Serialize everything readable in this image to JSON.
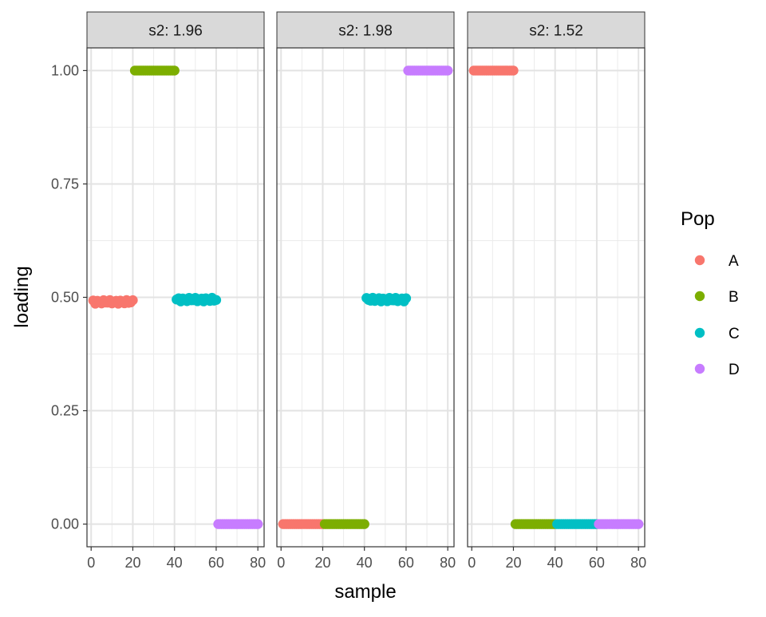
{
  "chart_data": {
    "type": "scatter",
    "xlabel": "sample",
    "ylabel": "loading",
    "xlim": [
      -2,
      83
    ],
    "ylim": [
      -0.05,
      1.05
    ],
    "x_ticks": [
      "0",
      "20",
      "40",
      "60",
      "80"
    ],
    "y_ticks": [
      "0.00",
      "0.25",
      "0.50",
      "0.75",
      "1.00"
    ],
    "grid": true,
    "legend": {
      "title": "Pop",
      "position": "right",
      "entries": [
        {
          "label": "A",
          "color": "#F8766D"
        },
        {
          "label": "B",
          "color": "#7CAE00"
        },
        {
          "label": "C",
          "color": "#00BFC4"
        },
        {
          "label": "D",
          "color": "#C77CFF"
        }
      ]
    },
    "panels": [
      {
        "strip": "s2: 1.96",
        "segments": [
          {
            "pop": "A",
            "x_from": 1,
            "x_to": 20,
            "y": 0.49,
            "jitter": 0.004
          },
          {
            "pop": "B",
            "x_from": 21,
            "x_to": 40,
            "y": 1.0,
            "jitter": 0
          },
          {
            "pop": "C",
            "x_from": 41,
            "x_to": 60,
            "y": 0.495,
            "jitter": 0.004
          },
          {
            "pop": "D",
            "x_from": 61,
            "x_to": 80,
            "y": 0.0,
            "jitter": 0
          }
        ]
      },
      {
        "strip": "s2: 1.98",
        "segments": [
          {
            "pop": "A",
            "x_from": 1,
            "x_to": 20,
            "y": 0.0,
            "jitter": 0
          },
          {
            "pop": "B",
            "x_from": 21,
            "x_to": 40,
            "y": 0.0,
            "jitter": 0
          },
          {
            "pop": "C",
            "x_from": 41,
            "x_to": 60,
            "y": 0.495,
            "jitter": 0.004
          },
          {
            "pop": "D",
            "x_from": 61,
            "x_to": 80,
            "y": 1.0,
            "jitter": 0
          }
        ]
      },
      {
        "strip": "s2: 1.52",
        "segments": [
          {
            "pop": "A",
            "x_from": 1,
            "x_to": 20,
            "y": 1.0,
            "jitter": 0
          },
          {
            "pop": "B",
            "x_from": 21,
            "x_to": 40,
            "y": 0.0,
            "jitter": 0
          },
          {
            "pop": "C",
            "x_from": 41,
            "x_to": 60,
            "y": 0.0,
            "jitter": 0
          },
          {
            "pop": "D",
            "x_from": 61,
            "x_to": 80,
            "y": 0.0,
            "jitter": 0
          }
        ]
      }
    ]
  }
}
